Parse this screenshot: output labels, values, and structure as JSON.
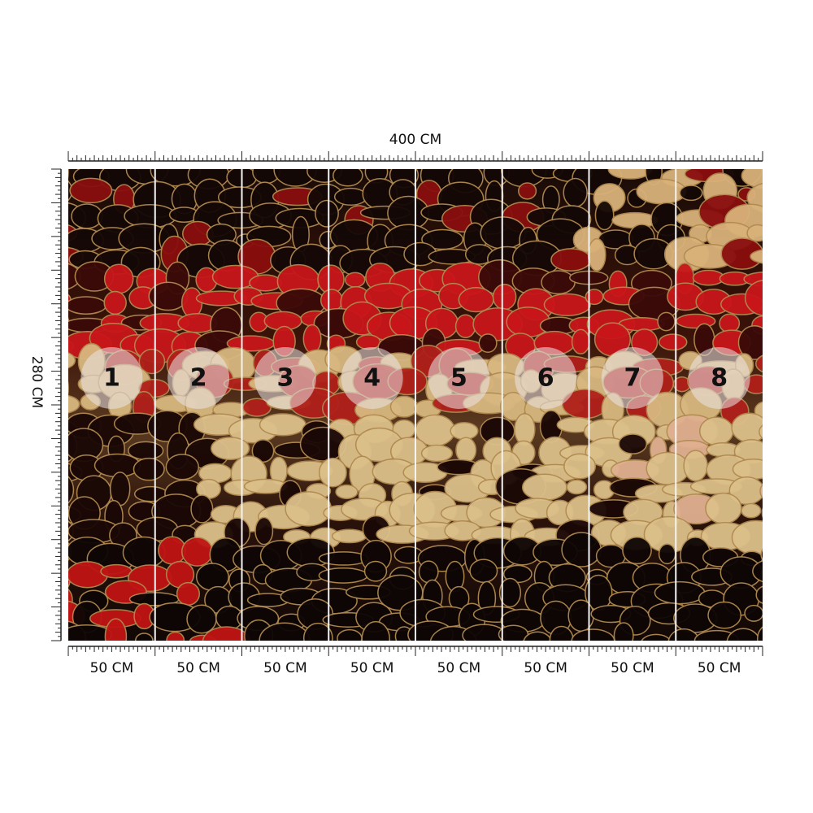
{
  "header": {
    "width_label": "400 CM",
    "height_label": "280 CM"
  },
  "panels": [
    {
      "number": "1",
      "width_label": "50 CM"
    },
    {
      "number": "2",
      "width_label": "50 CM"
    },
    {
      "number": "3",
      "width_label": "50 CM"
    },
    {
      "number": "4",
      "width_label": "50 CM"
    },
    {
      "number": "5",
      "width_label": "50 CM"
    },
    {
      "number": "6",
      "width_label": "50 CM"
    },
    {
      "number": "7",
      "width_label": "50 CM"
    },
    {
      "number": "8",
      "width_label": "50 CM"
    }
  ]
}
